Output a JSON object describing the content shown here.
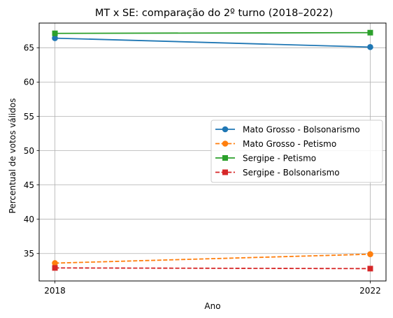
{
  "chart_data": {
    "type": "line",
    "title": "MT x SE: comparação do 2º turno (2018–2022)",
    "xlabel": "Ano",
    "ylabel": "Percentual de votos válidos",
    "x": [
      2018,
      2022
    ],
    "x_ticks": [
      "2018",
      "2022"
    ],
    "ylim": [
      31,
      68.6
    ],
    "y_ticks": [
      "35",
      "40",
      "45",
      "50",
      "55",
      "60",
      "65"
    ],
    "grid": true,
    "legend_position": "center-right",
    "series": [
      {
        "name": "Mato Grosso - Bolsonarismo",
        "values": [
          66.4,
          65.1
        ],
        "color": "#1f77b4",
        "line_style": "solid",
        "marker": "circle"
      },
      {
        "name": "Mato Grosso - Petismo",
        "values": [
          33.6,
          34.9
        ],
        "color": "#ff7f0e",
        "line_style": "dashed",
        "marker": "circle"
      },
      {
        "name": "Sergipe - Petismo",
        "values": [
          67.1,
          67.2
        ],
        "color": "#2ca02c",
        "line_style": "solid",
        "marker": "square"
      },
      {
        "name": "Sergipe - Bolsonarismo",
        "values": [
          32.9,
          32.8
        ],
        "color": "#d62728",
        "line_style": "dashed",
        "marker": "square"
      }
    ]
  }
}
